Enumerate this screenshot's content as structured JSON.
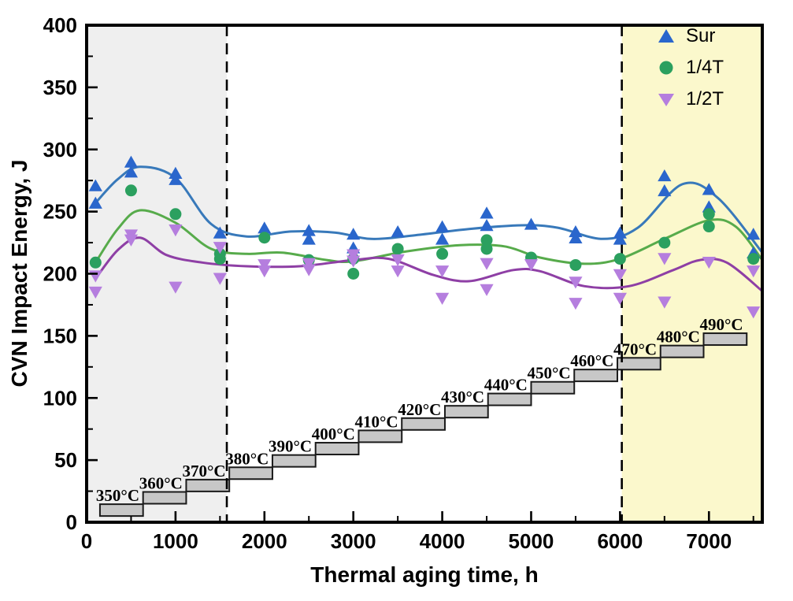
{
  "page": {
    "background": "#ffffff"
  },
  "legend": {
    "items": [
      {
        "label": "Sur",
        "marker": "triangle-up",
        "color": "#2a66cc"
      },
      {
        "label": "1/4T",
        "marker": "circle",
        "color": "#2ba05f"
      },
      {
        "label": "1/2T",
        "marker": "triangle-down",
        "color": "#b57ede"
      }
    ]
  },
  "chart_data": {
    "type": "scatter",
    "title": "",
    "xlabel": "Thermal aging time, h",
    "ylabel": "CVN Impact Energy, J",
    "xlim": [
      0,
      7600
    ],
    "ylim": [
      0,
      400
    ],
    "x_major_ticks": [
      0,
      1000,
      2000,
      3000,
      4000,
      5000,
      6000,
      7000
    ],
    "x_minor_step": 500,
    "y_major_ticks": [
      0,
      50,
      100,
      150,
      200,
      250,
      300,
      350,
      400
    ],
    "y_minor_step": 25,
    "grid": false,
    "legend_position": "top-right",
    "regions": [
      {
        "name": "early-aging-band",
        "x0": 0,
        "x1": 1577,
        "color": "#efefef"
      },
      {
        "name": "late-aging-band",
        "x0": 6020,
        "x1": 7600,
        "color": "#fbf8cc"
      }
    ],
    "boundary_lines": {
      "x_values": [
        1577,
        6020
      ],
      "style": "dashed",
      "color": "#000000"
    },
    "series": [
      {
        "name": "Sur",
        "marker": "triangle-up",
        "marker_color": "#2a66cc",
        "line_color": "#3879ba",
        "points": [
          [
            100,
            270
          ],
          [
            100,
            256
          ],
          [
            500,
            289
          ],
          [
            500,
            281
          ],
          [
            1000,
            280
          ],
          [
            1000,
            275
          ],
          [
            1500,
            232
          ],
          [
            2000,
            236
          ],
          [
            2500,
            234
          ],
          [
            2500,
            227
          ],
          [
            3000,
            231
          ],
          [
            3000,
            220
          ],
          [
            3500,
            233
          ],
          [
            4000,
            237
          ],
          [
            4000,
            227
          ],
          [
            4500,
            248
          ],
          [
            4500,
            238
          ],
          [
            5000,
            239
          ],
          [
            5500,
            233
          ],
          [
            5500,
            228
          ],
          [
            6000,
            232
          ],
          [
            6000,
            227
          ],
          [
            6500,
            278
          ],
          [
            6500,
            266
          ],
          [
            7000,
            267
          ],
          [
            7000,
            253
          ],
          [
            7500,
            231
          ],
          [
            7500,
            216
          ]
        ],
        "trend": [
          [
            100,
            257
          ],
          [
            350,
            276
          ],
          [
            600,
            286
          ],
          [
            1000,
            277
          ],
          [
            1400,
            240
          ],
          [
            1800,
            230
          ],
          [
            2300,
            234
          ],
          [
            2800,
            233
          ],
          [
            3200,
            228
          ],
          [
            3700,
            231
          ],
          [
            4300,
            236
          ],
          [
            4900,
            239
          ],
          [
            5300,
            237
          ],
          [
            5800,
            228
          ],
          [
            6200,
            237
          ],
          [
            6700,
            272
          ],
          [
            7100,
            261
          ],
          [
            7600,
            217
          ]
        ]
      },
      {
        "name": "1/4T",
        "marker": "circle",
        "marker_color": "#2ba05f",
        "line_color": "#57ab4b",
        "points": [
          [
            100,
            209
          ],
          [
            500,
            267
          ],
          [
            1000,
            248
          ],
          [
            1500,
            216
          ],
          [
            1500,
            212
          ],
          [
            2000,
            229
          ],
          [
            2500,
            211
          ],
          [
            3000,
            212
          ],
          [
            3000,
            200
          ],
          [
            3500,
            220
          ],
          [
            4000,
            216
          ],
          [
            4500,
            227
          ],
          [
            4500,
            220
          ],
          [
            5000,
            213
          ],
          [
            5500,
            207
          ],
          [
            6000,
            212
          ],
          [
            6500,
            225
          ],
          [
            7000,
            248
          ],
          [
            7000,
            238
          ],
          [
            7500,
            212
          ]
        ],
        "trend": [
          [
            100,
            209
          ],
          [
            350,
            236
          ],
          [
            600,
            251
          ],
          [
            1000,
            241
          ],
          [
            1400,
            220
          ],
          [
            1800,
            216
          ],
          [
            2200,
            217
          ],
          [
            2700,
            211
          ],
          [
            3000,
            210
          ],
          [
            3600,
            218
          ],
          [
            4200,
            223
          ],
          [
            4700,
            222
          ],
          [
            5100,
            213
          ],
          [
            5600,
            208
          ],
          [
            6000,
            212
          ],
          [
            6500,
            228
          ],
          [
            7000,
            243
          ],
          [
            7300,
            238
          ],
          [
            7600,
            211
          ]
        ]
      },
      {
        "name": "1/2T",
        "marker": "triangle-down",
        "marker_color": "#b57ede",
        "line_color": "#8e3fa5",
        "points": [
          [
            100,
            199
          ],
          [
            100,
            186
          ],
          [
            500,
            232
          ],
          [
            500,
            228
          ],
          [
            1000,
            236
          ],
          [
            1000,
            190
          ],
          [
            1500,
            222
          ],
          [
            1500,
            197
          ],
          [
            2000,
            208
          ],
          [
            2000,
            203
          ],
          [
            2500,
            209
          ],
          [
            2500,
            204
          ],
          [
            3000,
            216
          ],
          [
            3000,
            211
          ],
          [
            3500,
            212
          ],
          [
            3500,
            203
          ],
          [
            4000,
            203
          ],
          [
            4000,
            181
          ],
          [
            4500,
            209
          ],
          [
            4500,
            188
          ],
          [
            5000,
            208
          ],
          [
            5500,
            194
          ],
          [
            5500,
            177
          ],
          [
            6000,
            200
          ],
          [
            6000,
            181
          ],
          [
            6500,
            213
          ],
          [
            6500,
            178
          ],
          [
            7000,
            210
          ],
          [
            7500,
            203
          ],
          [
            7500,
            170
          ]
        ],
        "trend": [
          [
            100,
            196
          ],
          [
            350,
            219
          ],
          [
            600,
            229
          ],
          [
            900,
            215
          ],
          [
            1300,
            209
          ],
          [
            1800,
            206
          ],
          [
            2400,
            206
          ],
          [
            3000,
            211
          ],
          [
            3400,
            212
          ],
          [
            3900,
            199
          ],
          [
            4300,
            194
          ],
          [
            4800,
            203
          ],
          [
            5100,
            202
          ],
          [
            5600,
            190
          ],
          [
            6100,
            190
          ],
          [
            6600,
            203
          ],
          [
            6900,
            211
          ],
          [
            7200,
            209
          ],
          [
            7600,
            186
          ]
        ]
      }
    ],
    "temperature_steps": {
      "fill": "#c7c7c7",
      "border": "#1a1a1a",
      "steps": [
        {
          "label": "350°C",
          "x0": 150,
          "x1": 635,
          "e0": 5.0,
          "e1": 14.5
        },
        {
          "label": "360°C",
          "x0": 635,
          "x1": 1120,
          "e0": 14.9,
          "e1": 24.4
        },
        {
          "label": "370°C",
          "x0": 1120,
          "x1": 1605,
          "e0": 24.8,
          "e1": 34.3
        },
        {
          "label": "380°C",
          "x0": 1605,
          "x1": 2090,
          "e0": 34.7,
          "e1": 44.2
        },
        {
          "label": "390°C",
          "x0": 2090,
          "x1": 2575,
          "e0": 44.6,
          "e1": 54.1
        },
        {
          "label": "400°C",
          "x0": 2575,
          "x1": 3060,
          "e0": 54.5,
          "e1": 64.0
        },
        {
          "label": "410°C",
          "x0": 3060,
          "x1": 3545,
          "e0": 64.4,
          "e1": 73.9
        },
        {
          "label": "420°C",
          "x0": 3545,
          "x1": 4030,
          "e0": 74.3,
          "e1": 83.8
        },
        {
          "label": "430°C",
          "x0": 4030,
          "x1": 4515,
          "e0": 84.2,
          "e1": 93.7
        },
        {
          "label": "440°C",
          "x0": 4515,
          "x1": 5000,
          "e0": 94.1,
          "e1": 103.6
        },
        {
          "label": "450°C",
          "x0": 5000,
          "x1": 5485,
          "e0": 103.5,
          "e1": 113.0
        },
        {
          "label": "460°C",
          "x0": 5485,
          "x1": 5970,
          "e0": 113.4,
          "e1": 122.9
        },
        {
          "label": "470°C",
          "x0": 5970,
          "x1": 6455,
          "e0": 122.8,
          "e1": 132.3
        },
        {
          "label": "480°C",
          "x0": 6455,
          "x1": 6940,
          "e0": 132.7,
          "e1": 142.2
        },
        {
          "label": "490°C",
          "x0": 6940,
          "x1": 7425,
          "e0": 142.6,
          "e1": 152.1
        }
      ]
    }
  }
}
